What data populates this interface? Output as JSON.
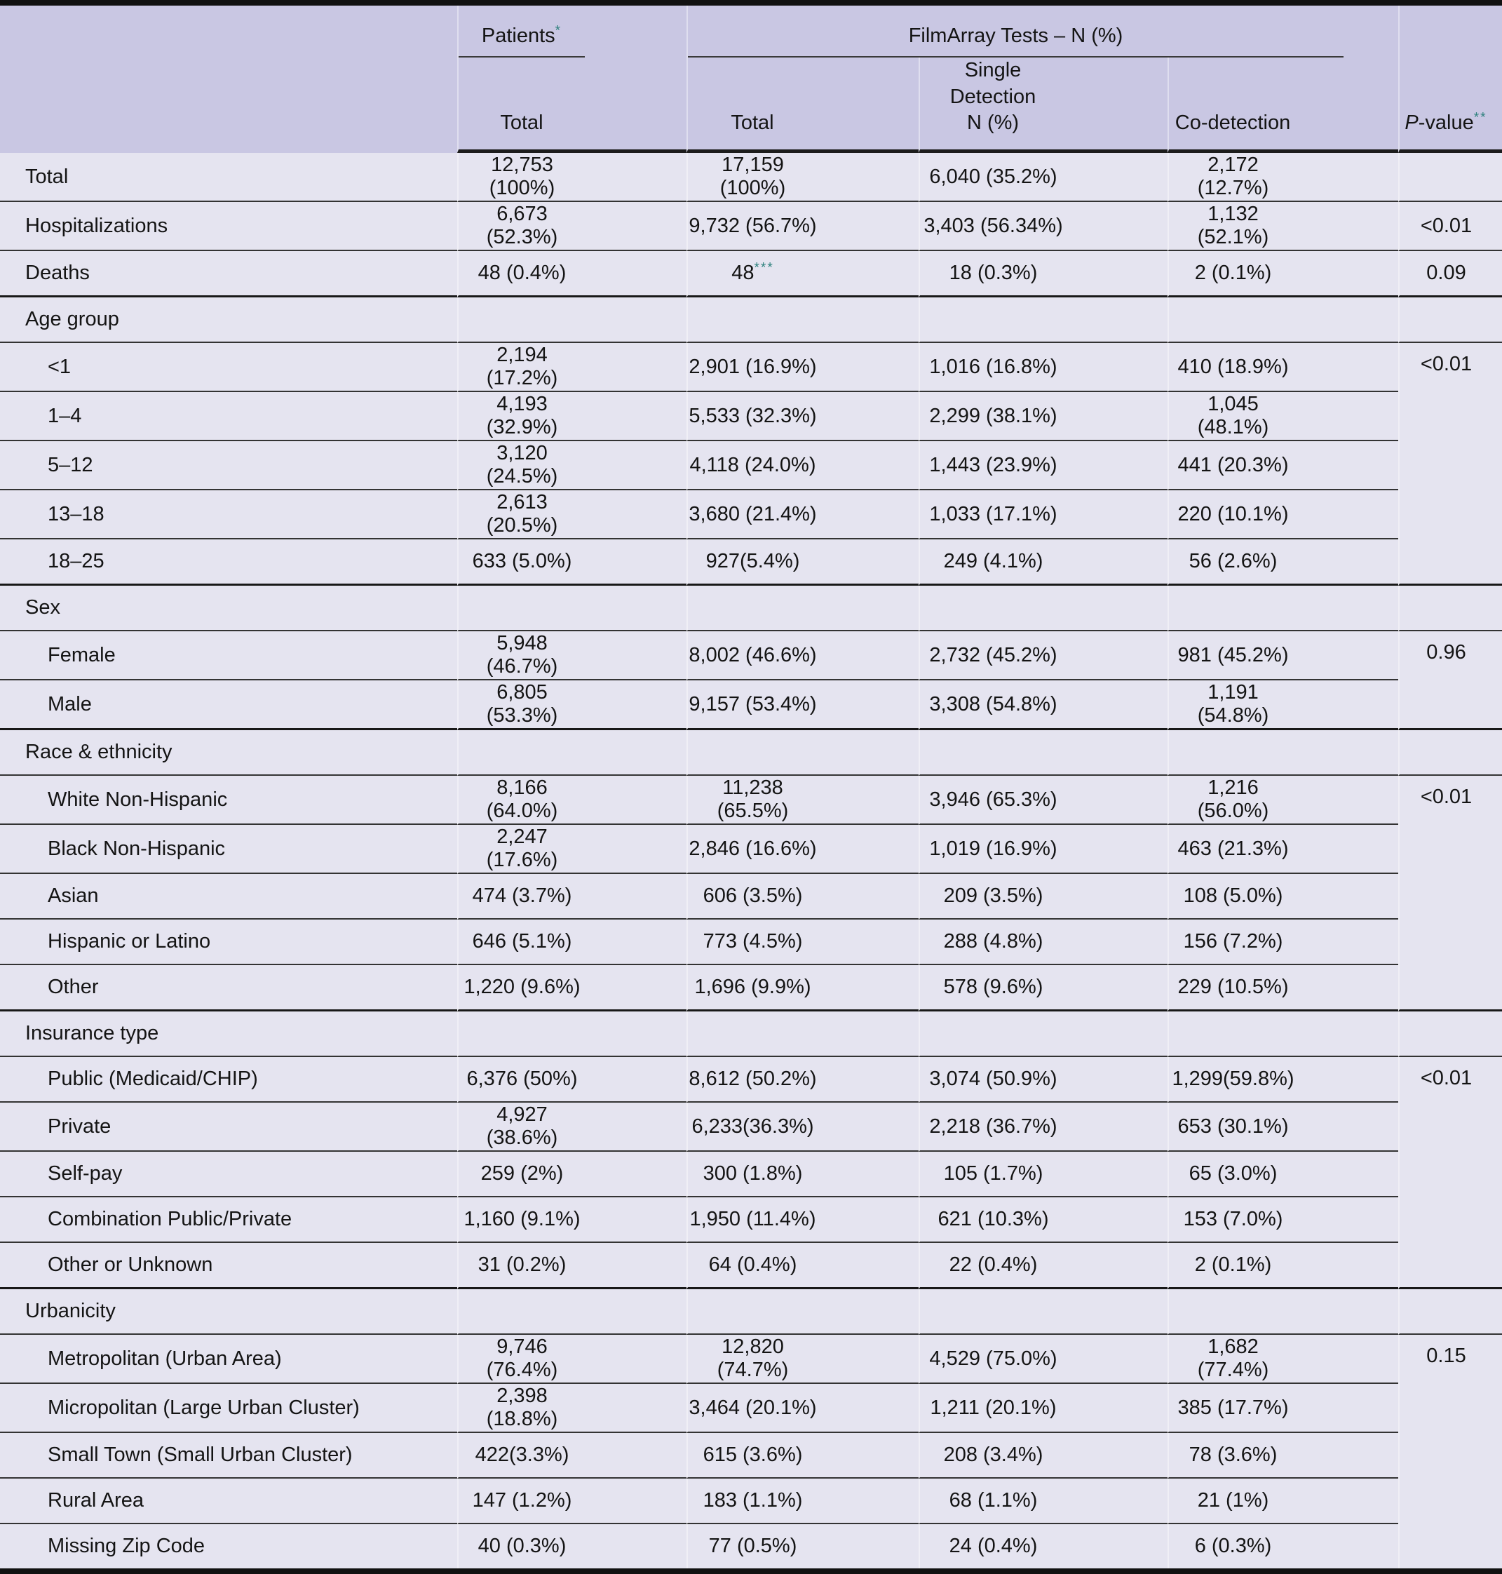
{
  "colors": {
    "header_bg": "#c9c7e3",
    "body_bg": "#e5e4f0",
    "accent_teal": "#2e817d",
    "line": "#333333",
    "frame": "#111111"
  },
  "header": {
    "patients": "Patients",
    "patients_sup": "*",
    "filmarray": "FilmArray Tests – N (%)",
    "patients_total": "Total",
    "fa_total": "Total",
    "single_line1": "Single Detection",
    "single_line2": "N (%)",
    "codetection": "Co-detection",
    "pvalue_p": "P",
    "pvalue_rest": "-value",
    "pvalue_sup": "**"
  },
  "rows": [
    {
      "label": "Total",
      "values": [
        "12,753 (100%)",
        "17,159 (100%)",
        "6,040 (35.2%)",
        "2,172 (12.7%)"
      ],
      "pvalue": "",
      "pspan": 1
    },
    {
      "label": "Hospitalizations",
      "values": [
        "6,673 (52.3%)",
        "9,732 (56.7%)",
        "3,403 (56.34%)",
        "1,132 (52.1%)"
      ],
      "pvalue": "<0.01",
      "pspan": 1
    },
    {
      "label": "Deaths",
      "values": [
        "48 (0.4%)",
        "48",
        "18 (0.3%)",
        "2 (0.1%)"
      ],
      "sup2": "***",
      "pvalue": "0.09",
      "pspan": 1,
      "end": true
    },
    {
      "label": "Age group",
      "group": true
    },
    {
      "label": "<1",
      "indent": true,
      "values": [
        "2,194 (17.2%)",
        "2,901 (16.9%)",
        "1,016 (16.8%)",
        "410 (18.9%)"
      ],
      "pvalue": "<0.01",
      "pspan": 5
    },
    {
      "label": "1–4",
      "indent": true,
      "values": [
        "4,193 (32.9%)",
        "5,533 (32.3%)",
        "2,299 (38.1%)",
        "1,045 (48.1%)"
      ]
    },
    {
      "label": "5–12",
      "indent": true,
      "values": [
        "3,120 (24.5%)",
        "4,118 (24.0%)",
        "1,443 (23.9%)",
        "441 (20.3%)"
      ]
    },
    {
      "label": "13–18",
      "indent": true,
      "values": [
        "2,613 (20.5%)",
        "3,680 (21.4%)",
        "1,033 (17.1%)",
        "220 (10.1%)"
      ]
    },
    {
      "label": "18–25",
      "indent": true,
      "values": [
        "633 (5.0%)",
        "927(5.4%)",
        "249 (4.1%)",
        "56 (2.6%)"
      ],
      "end": true
    },
    {
      "label": "Sex",
      "group": true
    },
    {
      "label": "Female",
      "indent": true,
      "values": [
        "5,948 (46.7%)",
        "8,002 (46.6%)",
        "2,732 (45.2%)",
        "981 (45.2%)"
      ],
      "pvalue": "0.96",
      "pspan": 2
    },
    {
      "label": "Male",
      "indent": true,
      "values": [
        "6,805 (53.3%)",
        "9,157 (53.4%)",
        "3,308 (54.8%)",
        "1,191 (54.8%)"
      ],
      "end": true
    },
    {
      "label": "Race & ethnicity",
      "group": true
    },
    {
      "label": "White Non-Hispanic",
      "indent": true,
      "values": [
        "8,166 (64.0%)",
        "11,238 (65.5%)",
        "3,946 (65.3%)",
        "1,216 (56.0%)"
      ],
      "pvalue": "<0.01",
      "pspan": 5
    },
    {
      "label": "Black Non-Hispanic",
      "indent": true,
      "values": [
        "2,247 (17.6%)",
        "2,846 (16.6%)",
        "1,019 (16.9%)",
        "463 (21.3%)"
      ]
    },
    {
      "label": "Asian",
      "indent": true,
      "values": [
        "474 (3.7%)",
        "606 (3.5%)",
        "209 (3.5%)",
        "108 (5.0%)"
      ]
    },
    {
      "label": "Hispanic or Latino",
      "indent": true,
      "values": [
        "646 (5.1%)",
        "773 (4.5%)",
        "288 (4.8%)",
        "156 (7.2%)"
      ]
    },
    {
      "label": "Other",
      "indent": true,
      "values": [
        "1,220 (9.6%)",
        "1,696 (9.9%)",
        "578 (9.6%)",
        "229 (10.5%)"
      ],
      "end": true
    },
    {
      "label": "Insurance type",
      "group": true
    },
    {
      "label": "Public (Medicaid/CHIP)",
      "indent": true,
      "values": [
        "6,376 (50%)",
        "8,612 (50.2%)",
        "3,074 (50.9%)",
        "1,299(59.8%)"
      ],
      "pvalue": "<0.01",
      "pspan": 5
    },
    {
      "label": "Private",
      "indent": true,
      "values": [
        "4,927 (38.6%)",
        "6,233(36.3%)",
        "2,218 (36.7%)",
        "653 (30.1%)"
      ]
    },
    {
      "label": "Self-pay",
      "indent": true,
      "values": [
        "259 (2%)",
        "300 (1.8%)",
        "105 (1.7%)",
        "65 (3.0%)"
      ]
    },
    {
      "label": "Combination Public/Private",
      "indent": true,
      "values": [
        "1,160 (9.1%)",
        "1,950 (11.4%)",
        "621 (10.3%)",
        "153 (7.0%)"
      ]
    },
    {
      "label": "Other or Unknown",
      "indent": true,
      "values": [
        "31 (0.2%)",
        "64 (0.4%)",
        "22 (0.4%)",
        "2 (0.1%)"
      ],
      "end": true
    },
    {
      "label": "Urbanicity",
      "group": true
    },
    {
      "label": "Metropolitan (Urban Area)",
      "indent": true,
      "values": [
        "9,746 (76.4%)",
        "12,820 (74.7%)",
        "4,529 (75.0%)",
        "1,682 (77.4%)"
      ],
      "pvalue": "0.15",
      "pspan": 5
    },
    {
      "label": "Micropolitan (Large Urban Cluster)",
      "indent": true,
      "values": [
        "2,398 (18.8%)",
        "3,464 (20.1%)",
        "1,211 (20.1%)",
        "385 (17.7%)"
      ]
    },
    {
      "label": "Small Town (Small Urban Cluster)",
      "indent": true,
      "values": [
        "422(3.3%)",
        "615 (3.6%)",
        "208 (3.4%)",
        "78 (3.6%)"
      ]
    },
    {
      "label": "Rural Area",
      "indent": true,
      "values": [
        "147 (1.2%)",
        "183 (1.1%)",
        "68 (1.1%)",
        "21 (1%)"
      ]
    },
    {
      "label": "Missing Zip Code",
      "indent": true,
      "values": [
        "40 (0.3%)",
        "77 (0.5%)",
        "24 (0.4%)",
        "6 (0.3%)"
      ],
      "end": true
    }
  ]
}
